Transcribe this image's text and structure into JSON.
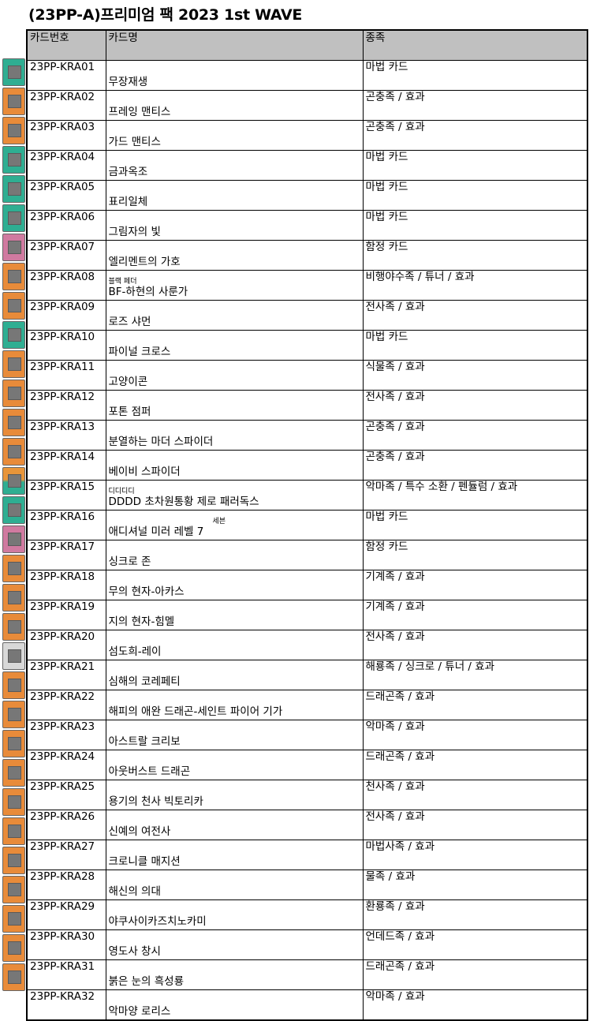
{
  "title": "(23PP-A)프리미엄 팩 2023 1st WAVE",
  "headers": {
    "code": "카드번호",
    "name": "카드명",
    "type": "종족"
  },
  "colors": {
    "spell": "#2fae92",
    "effect": "#e88b3a",
    "trap": "#d07aa0",
    "synchro": "#d8d8d8",
    "pendulum": "pendulum"
  },
  "rows": [
    {
      "code": "23PP-KRA01",
      "name": "무장재생",
      "type": "마법 카드",
      "kind": "spell"
    },
    {
      "code": "23PP-KRA02",
      "name": "프레잉 맨티스",
      "type": "곤충족 / 효과",
      "kind": "effect"
    },
    {
      "code": "23PP-KRA03",
      "name": "가드 맨티스",
      "type": "곤충족 / 효과",
      "kind": "effect"
    },
    {
      "code": "23PP-KRA04",
      "name": "금과옥조",
      "type": "마법 카드",
      "kind": "spell"
    },
    {
      "code": "23PP-KRA05",
      "name": "표리일체",
      "type": "마법 카드",
      "kind": "spell"
    },
    {
      "code": "23PP-KRA06",
      "name": "그림자의 빛",
      "type": "마법 카드",
      "kind": "spell"
    },
    {
      "code": "23PP-KRA07",
      "name": "엘리멘트의 가호",
      "type": "함정 카드",
      "kind": "trap"
    },
    {
      "code": "23PP-KRA08",
      "name": "BF-하현의 사룬가",
      "ruby": "블랙 페더",
      "type": "비행야수족 / 튜너 / 효과",
      "kind": "effect"
    },
    {
      "code": "23PP-KRA09",
      "name": "로즈 샤먼",
      "type": "전사족 / 효과",
      "kind": "effect"
    },
    {
      "code": "23PP-KRA10",
      "name": "파이널 크로스",
      "type": "마법 카드",
      "kind": "spell"
    },
    {
      "code": "23PP-KRA11",
      "name": "고양이콘",
      "type": "식물족 / 효과",
      "kind": "effect"
    },
    {
      "code": "23PP-KRA12",
      "name": "포톤 점퍼",
      "type": "전사족 / 효과",
      "kind": "effect"
    },
    {
      "code": "23PP-KRA13",
      "name": "분열하는 마더 스파이더",
      "type": "곤충족 / 효과",
      "kind": "effect"
    },
    {
      "code": "23PP-KRA14",
      "name": "베이비 스파이더",
      "type": "곤충족 / 효과",
      "kind": "effect"
    },
    {
      "code": "23PP-KRA15",
      "name": "DDDD 초차원통황 제로 패러독스",
      "ruby": "디디디디",
      "type": "악마족 / 특수 소환 / 펜듈럼 / 효과",
      "kind": "pendulum"
    },
    {
      "code": "23PP-KRA16",
      "name": "애디셔널 미러 레벨 7",
      "ruby": "세븐",
      "ruby_offset": true,
      "type": "마법 카드",
      "kind": "spell"
    },
    {
      "code": "23PP-KRA17",
      "name": "싱크로 존",
      "type": "함정 카드",
      "kind": "trap"
    },
    {
      "code": "23PP-KRA18",
      "name": "무의 현자-아카스",
      "type": "기계족 / 효과",
      "kind": "effect"
    },
    {
      "code": "23PP-KRA19",
      "name": "지의 현자-힘멜",
      "type": "기계족 / 효과",
      "kind": "effect"
    },
    {
      "code": "23PP-KRA20",
      "name": "섬도희-레이",
      "type": "전사족 / 효과",
      "kind": "effect"
    },
    {
      "code": "23PP-KRA21",
      "name": "심해의 코레페티",
      "type": "해룡족 / 싱크로 / 튜너 / 효과",
      "kind": "synchro"
    },
    {
      "code": "23PP-KRA22",
      "name": "해피의 애완 드래곤-세인트 파이어 기가",
      "type": "드래곤족 / 효과",
      "kind": "effect"
    },
    {
      "code": "23PP-KRA23",
      "name": "아스트랄 크리보",
      "type": "악마족 / 효과",
      "kind": "effect"
    },
    {
      "code": "23PP-KRA24",
      "name": "아웃버스트 드래곤",
      "type": "드래곤족 / 효과",
      "kind": "effect"
    },
    {
      "code": "23PP-KRA25",
      "name": "용기의 천사 빅토리카",
      "type": "천사족 / 효과",
      "kind": "effect"
    },
    {
      "code": "23PP-KRA26",
      "name": "신예의 여전사",
      "type": "전사족 / 효과",
      "kind": "effect"
    },
    {
      "code": "23PP-KRA27",
      "name": "크로니클 매지션",
      "type": "마법사족 / 효과",
      "kind": "effect"
    },
    {
      "code": "23PP-KRA28",
      "name": "해신의 의대",
      "type": "물족 / 효과",
      "kind": "effect"
    },
    {
      "code": "23PP-KRA29",
      "name": "야쿠사이카즈치노카미",
      "type": "환룡족 / 효과",
      "kind": "effect"
    },
    {
      "code": "23PP-KRA30",
      "name": "영도사 창시",
      "type": "언데드족 / 효과",
      "kind": "effect"
    },
    {
      "code": "23PP-KRA31",
      "name": "붉은 눈의 흑성룡",
      "type": "드래곤족 / 효과",
      "kind": "effect"
    },
    {
      "code": "23PP-KRA32",
      "name": "악마양 로리스",
      "type": "악마족 / 효과",
      "kind": "effect"
    }
  ]
}
